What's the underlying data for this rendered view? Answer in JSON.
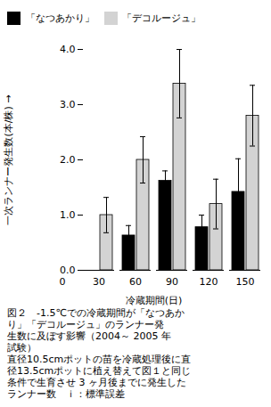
{
  "chart_data": {
    "type": "bar",
    "categories": [
      "0",
      "30",
      "60",
      "90",
      "120",
      "150"
    ],
    "xlabel": "冷蔵期間(日)",
    "ylabel": "一次ランナー発生数(本/株)",
    "series": [
      {
        "name": "「なつあかり」",
        "color": "#000000",
        "values": [
          null,
          0,
          0.63,
          1.62,
          0.78,
          1.42
        ],
        "errors": [
          null,
          0,
          0.18,
          0.18,
          0.22,
          0.6
        ]
      },
      {
        "name": "「デコルージュ」",
        "color": "#d3d3d3",
        "values": [
          null,
          1.0,
          2.0,
          3.38,
          1.2,
          2.8
        ],
        "errors": [
          null,
          0.32,
          0.42,
          0.62,
          0.45,
          0.55
        ]
      }
    ],
    "ylim": [
      0,
      4
    ],
    "yticks": [
      0,
      1,
      2,
      3,
      4
    ],
    "legend": "upper left",
    "caption": [
      "図２　-1.5℃での冷蔵期間が「なつあか",
      "り」「デコルージュ」のランナー発",
      "生数に及ぼす影響（2004～ 2005 年",
      "試験）",
      "直径10.5cmポットの苗を冷蔵処理後に直",
      "径13.5cmポットに植え替えて図１と同じ",
      "条件で生育させ 3 ヶ月後までに発生した",
      "ランナー数　ｉ：標準誤差"
    ]
  }
}
